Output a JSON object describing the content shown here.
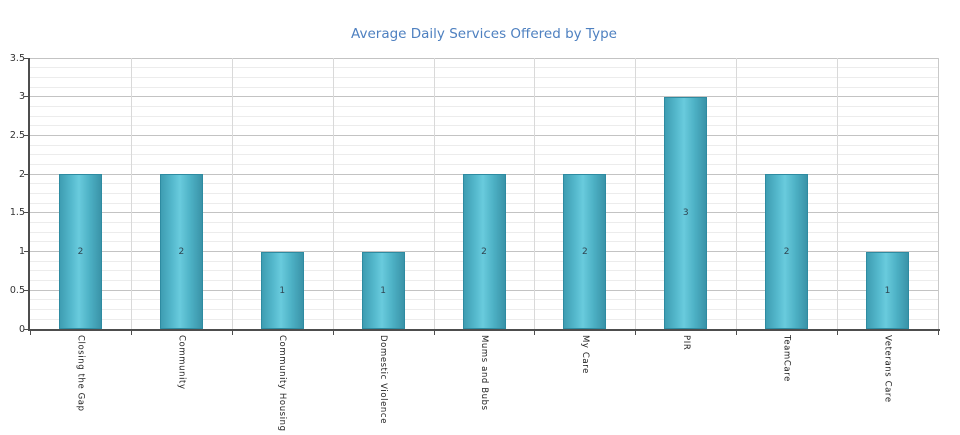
{
  "chart_data": {
    "type": "bar",
    "title": "Average Daily Services Offered by Type",
    "categories": [
      "Closing the Gap",
      "Community",
      "Community Housing",
      "Domestic Violence",
      "Mums and Bubs",
      "My Care",
      "PIR",
      "TeamCare",
      "Veterans Care"
    ],
    "values": [
      2,
      2,
      1,
      1,
      2,
      2,
      3,
      2,
      1
    ],
    "data_labels": [
      "2",
      "2",
      "1",
      "1",
      "2",
      "2",
      "3",
      "2",
      "1"
    ],
    "y_ticks": [
      "0",
      "0.5",
      "1",
      "1.5",
      "2",
      "2.5",
      "3",
      "3.5"
    ],
    "ylim": [
      0,
      3.5
    ],
    "y_major_step": 0.5,
    "y_minor_step": 0.125,
    "xlabel": "",
    "ylabel": "",
    "grid": true,
    "legend_position": "none",
    "colors": {
      "bar_fill": "#45aec2",
      "bar_highlight": "#69cbdd",
      "bar_border": "#2e8ba1",
      "title_text": "#4e80c0",
      "axis_line": "#4d4d4d",
      "grid_major": "#c3c3c3",
      "grid_minor": "#ececec",
      "grid_vertical": "#d9d9d9",
      "tick_label": "#333333",
      "data_label": "#2f4551"
    }
  }
}
